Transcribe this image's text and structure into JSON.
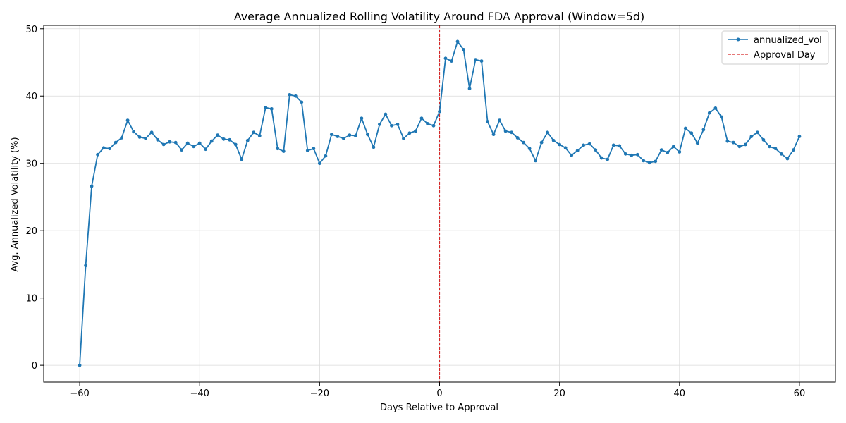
{
  "chart_data": {
    "type": "line",
    "title": "Average Annualized Rolling Volatility Around FDA Approval (Window=5d)",
    "xlabel": "Days Relative to Approval",
    "ylabel": "Avg. Annualized Volatility (%)",
    "xlim": [
      -66,
      66
    ],
    "ylim": [
      -2.5,
      50.5
    ],
    "xticks": [
      -60,
      -40,
      -20,
      0,
      20,
      40,
      60
    ],
    "yticks": [
      0,
      10,
      20,
      30,
      40,
      50
    ],
    "xtick_labels": [
      "−60",
      "−40",
      "−20",
      "0",
      "20",
      "40",
      "60"
    ],
    "ytick_labels": [
      "0",
      "10",
      "20",
      "30",
      "40",
      "50"
    ],
    "grid": true,
    "legend_position": "top-right",
    "series": [
      {
        "name": "annualized_vol",
        "color": "#1f77b4",
        "marker": "circle",
        "x": [
          -60,
          -59,
          -58,
          -57,
          -56,
          -55,
          -54,
          -53,
          -52,
          -51,
          -50,
          -49,
          -48,
          -47,
          -46,
          -45,
          -44,
          -43,
          -42,
          -41,
          -40,
          -39,
          -38,
          -37,
          -36,
          -35,
          -34,
          -33,
          -32,
          -31,
          -30,
          -29,
          -28,
          -27,
          -26,
          -25,
          -24,
          -23,
          -22,
          -21,
          -20,
          -19,
          -18,
          -17,
          -16,
          -15,
          -14,
          -13,
          -12,
          -11,
          -10,
          -9,
          -8,
          -7,
          -6,
          -5,
          -4,
          -3,
          -2,
          -1,
          0,
          1,
          2,
          3,
          4,
          5,
          6,
          7,
          8,
          9,
          10,
          11,
          12,
          13,
          14,
          15,
          16,
          17,
          18,
          19,
          20,
          21,
          22,
          23,
          24,
          25,
          26,
          27,
          28,
          29,
          30,
          31,
          32,
          33,
          34,
          35,
          36,
          37,
          38,
          39,
          40,
          41,
          42,
          43,
          44,
          45,
          46,
          47,
          48,
          49,
          50,
          51,
          52,
          53,
          54,
          55,
          56,
          57,
          58,
          59,
          60
        ],
        "values": [
          0.0,
          14.8,
          26.6,
          31.3,
          32.3,
          32.2,
          33.1,
          33.8,
          36.4,
          34.7,
          33.9,
          33.7,
          34.6,
          33.5,
          32.8,
          33.2,
          33.1,
          32.0,
          33.0,
          32.5,
          33.0,
          32.1,
          33.3,
          34.2,
          33.6,
          33.5,
          32.8,
          30.6,
          33.4,
          34.6,
          34.1,
          38.3,
          38.1,
          32.2,
          31.8,
          40.2,
          40.0,
          39.1,
          31.9,
          32.2,
          30.0,
          31.1,
          34.3,
          34.0,
          33.7,
          34.2,
          34.1,
          36.7,
          34.3,
          32.4,
          35.8,
          37.3,
          35.6,
          35.8,
          33.7,
          34.5,
          34.8,
          36.7,
          35.9,
          35.6,
          37.7,
          45.6,
          45.2,
          48.1,
          46.9,
          41.1,
          45.4,
          45.2,
          36.2,
          34.3,
          36.4,
          34.8,
          34.6,
          33.8,
          33.1,
          32.2,
          30.4,
          33.1,
          34.6,
          33.4,
          32.8,
          32.3,
          31.2,
          31.9,
          32.7,
          32.9,
          32.0,
          30.8,
          30.6,
          32.7,
          32.6,
          31.4,
          31.2,
          31.3,
          30.4,
          30.1,
          30.3,
          32.0,
          31.6,
          32.5,
          31.7,
          35.2,
          34.5,
          33.0,
          35.0,
          37.5,
          38.2,
          36.9,
          33.3,
          33.1,
          32.5,
          32.8,
          34.0,
          34.6,
          33.5,
          32.5,
          32.2,
          31.4,
          30.7,
          32.0,
          34.0
        ]
      }
    ],
    "annotations": [
      {
        "type": "vline",
        "x": 0,
        "label": "Approval Day",
        "color": "#d62728",
        "style": "dashed"
      }
    ]
  }
}
